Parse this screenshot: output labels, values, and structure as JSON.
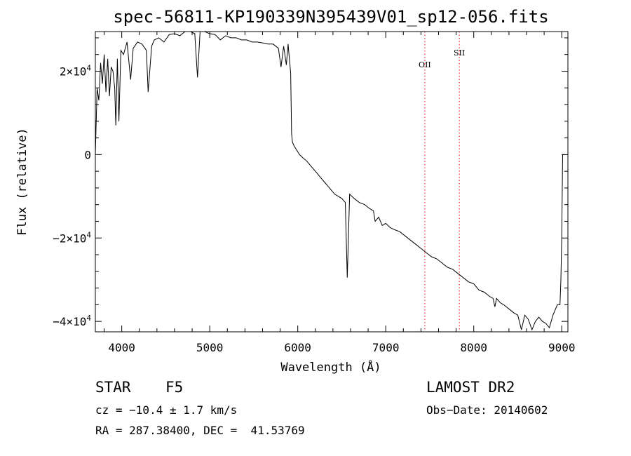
{
  "chart_data": {
    "type": "line",
    "title": "spec-56811-KP190339N395439V01_sp12-056.fits",
    "xlabel": "Wavelength (Å)",
    "ylabel": "Flux (relative)",
    "xlim": [
      3700,
      9070
    ],
    "ylim": [
      -42500,
      29500
    ],
    "x_ticks": [
      4000,
      5000,
      6000,
      7000,
      8000,
      9000
    ],
    "y_ticks": [
      {
        "value": 20000,
        "mantissa": "2",
        "times": "×",
        "base": "10",
        "exponent": "4"
      },
      {
        "value": 0,
        "mantissa": "0",
        "times": "",
        "base": "",
        "exponent": ""
      },
      {
        "value": -20000,
        "mantissa": "−2",
        "times": "×",
        "base": "10",
        "exponent": "4"
      },
      {
        "value": -40000,
        "mantissa": "−4",
        "times": "×",
        "base": "10",
        "exponent": "4"
      }
    ],
    "grid": false,
    "series": [
      {
        "color": "#000000",
        "x": [
          3700,
          3720,
          3740,
          3760,
          3780,
          3800,
          3820,
          3840,
          3860,
          3880,
          3900,
          3920,
          3933,
          3950,
          3968,
          3990,
          4020,
          4060,
          4101,
          4130,
          4180,
          4230,
          4280,
          4300,
          4340,
          4370,
          4420,
          4480,
          4540,
          4600,
          4660,
          4720,
          4780,
          4830,
          4861,
          4890,
          4940,
          5000,
          5060,
          5120,
          5180,
          5240,
          5300,
          5360,
          5420,
          5480,
          5540,
          5600,
          5660,
          5720,
          5780,
          5810,
          5840,
          5870,
          5890,
          5920,
          5930,
          5940,
          5960,
          5990,
          6020,
          6060,
          6100,
          6140,
          6180,
          6220,
          6260,
          6300,
          6340,
          6380,
          6420,
          6460,
          6500,
          6540,
          6563,
          6590,
          6640,
          6700,
          6760,
          6820,
          6860,
          6880,
          6920,
          6960,
          7000,
          7050,
          7100,
          7160,
          7220,
          7280,
          7340,
          7400,
          7460,
          7520,
          7580,
          7640,
          7700,
          7760,
          7820,
          7880,
          7940,
          8000,
          8060,
          8120,
          8180,
          8220,
          8240,
          8260,
          8300,
          8340,
          8400,
          8460,
          8500,
          8542,
          8580,
          8620,
          8662,
          8700,
          8740,
          8780,
          8820,
          8860,
          8900,
          8950,
          8980,
          8990,
          9000,
          9010,
          9030
        ],
        "y": [
          0,
          16000,
          13000,
          22000,
          17000,
          24000,
          15000,
          23000,
          14000,
          21000,
          20000,
          16000,
          7000,
          23000,
          8000,
          25000,
          24000,
          27000,
          18000,
          25500,
          27000,
          26500,
          25000,
          15000,
          26000,
          27500,
          28000,
          27000,
          28800,
          29000,
          28500,
          29500,
          30000,
          29000,
          18500,
          30000,
          29500,
          29000,
          28800,
          27500,
          28500,
          28000,
          28000,
          27500,
          27500,
          27000,
          27000,
          26800,
          26500,
          26500,
          25500,
          21000,
          26000,
          21500,
          26500,
          19500,
          5000,
          3000,
          2000,
          1000,
          0,
          -800,
          -1500,
          -2500,
          -3500,
          -4500,
          -5500,
          -6500,
          -7500,
          -8500,
          -9500,
          -10000,
          -10500,
          -11500,
          -29500,
          -9500,
          -10500,
          -11500,
          -12000,
          -13000,
          -13500,
          -16000,
          -15000,
          -17000,
          -16500,
          -17500,
          -18000,
          -18500,
          -19500,
          -20500,
          -21500,
          -22500,
          -23500,
          -24500,
          -25000,
          -26000,
          -27000,
          -27500,
          -28500,
          -29500,
          -30500,
          -31000,
          -32500,
          -33000,
          -34000,
          -34500,
          -36500,
          -34500,
          -35500,
          -36000,
          -37000,
          -38000,
          -38500,
          -42000,
          -38500,
          -39500,
          -42000,
          -40000,
          -39000,
          -40000,
          -40500,
          -41500,
          -38500,
          -36000,
          -36000,
          -30000,
          -20000,
          0,
          0
        ]
      }
    ],
    "annotations": [
      {
        "label": "OII",
        "x": 7444
      },
      {
        "label": "SII",
        "x": 7836
      }
    ]
  },
  "info": {
    "object_type": "STAR",
    "subclass": "F5",
    "cz": "cz = −10.4 ± 1.7 km/s",
    "radec": "RA = 287.38400, DEC =  41.53769",
    "survey": "LAMOST DR2",
    "obs_date": "Obs−Date: 20140602"
  }
}
